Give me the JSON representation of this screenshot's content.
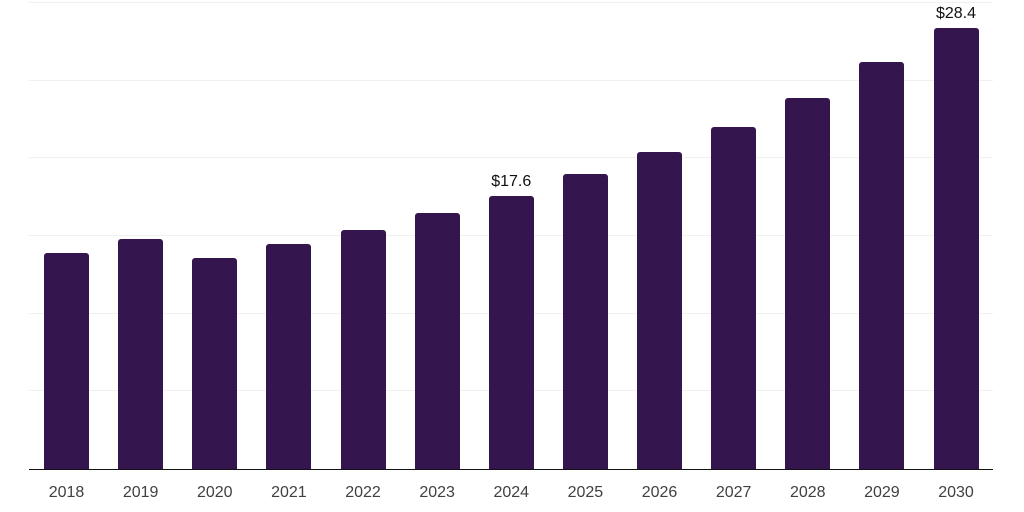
{
  "chart_data": {
    "type": "bar",
    "title": "",
    "xlabel": "",
    "ylabel": "",
    "categories": [
      "2018",
      "2019",
      "2020",
      "2021",
      "2022",
      "2023",
      "2024",
      "2025",
      "2026",
      "2027",
      "2028",
      "2029",
      "2030"
    ],
    "values": [
      13.9,
      14.8,
      13.6,
      14.5,
      15.4,
      16.5,
      17.6,
      19.0,
      20.4,
      22.0,
      23.9,
      26.2,
      28.4
    ],
    "value_labels": {
      "2024": "$17.6",
      "2030": "$28.4"
    },
    "ylim": [
      0,
      30
    ],
    "gridline_step": 5,
    "grid": "horizontal-only",
    "legend_position": "none",
    "colors": {
      "bar": "#35154D",
      "axis_line": "#111111",
      "gridline": "#F0F0F0",
      "tick_label": "#404040",
      "data_label": "#111111",
      "background": "#FFFFFF"
    }
  }
}
